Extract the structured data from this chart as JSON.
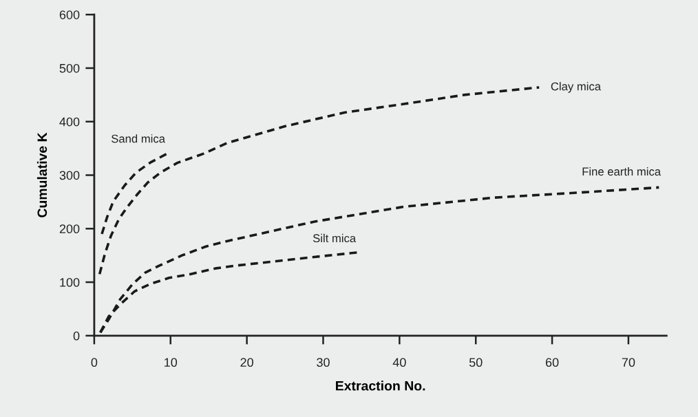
{
  "chart_data": {
    "type": "line",
    "xlabel": "Extraction No.",
    "ylabel": "Cumulative K",
    "xlim": [
      0,
      75
    ],
    "ylim": [
      0,
      600
    ],
    "xticks": [
      0,
      10,
      20,
      30,
      40,
      50,
      60,
      70
    ],
    "yticks": [
      0,
      100,
      200,
      300,
      400,
      500,
      600
    ],
    "grid": false,
    "legend": false,
    "line_style": "dashed",
    "marker": "none",
    "series": [
      {
        "name": "Sand mica",
        "color": "#1a1a1a",
        "x": [
          1.0,
          1.7,
          2.5,
          4.0,
          5.5,
          7.4,
          9.8
        ],
        "values": [
          190,
          222,
          251,
          281,
          305,
          324,
          342
        ]
      },
      {
        "name": "Clay mica",
        "color": "#1a1a1a",
        "x": [
          0.7,
          1.4,
          2.2,
          3.2,
          4.2,
          5.7,
          7.0,
          8.7,
          10.9,
          14.3,
          17.4,
          24.9,
          32.8,
          40.6,
          48.5,
          58.3
        ],
        "values": [
          115,
          153,
          187,
          217,
          238,
          265,
          286,
          305,
          323,
          340,
          360,
          391,
          417,
          433,
          450,
          464
        ]
      },
      {
        "name": "Fine earth mica",
        "color": "#1a1a1a",
        "x": [
          0.8,
          2.0,
          3.4,
          5.0,
          6.7,
          8.7,
          11.5,
          14.7,
          17.5,
          28.8,
          40.6,
          52.4,
          64.2,
          74.0
        ],
        "values": [
          6,
          33,
          68,
          96,
          118,
          132,
          150,
          167,
          177,
          213,
          241,
          258,
          268,
          277
        ]
      },
      {
        "name": "Silt mica",
        "color": "#1a1a1a",
        "x": [
          0.8,
          1.9,
          3.6,
          5.3,
          7.4,
          9.8,
          12.6,
          16.0,
          18.6,
          28.8,
          34.8
        ],
        "values": [
          6,
          36,
          61,
          83,
          97,
          108,
          115,
          126,
          131,
          147,
          156
        ]
      }
    ]
  }
}
